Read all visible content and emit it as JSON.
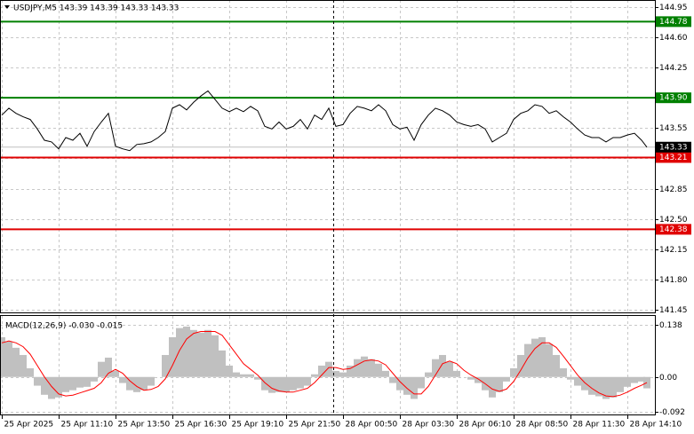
{
  "chart_data": [
    {
      "type": "line",
      "title": "USDJPY,M5  143.39 143.39 143.33 143.33",
      "x": [
        0,
        4,
        8,
        12,
        16,
        20,
        24,
        28,
        32,
        36,
        40,
        44,
        48,
        52,
        56,
        60,
        64,
        68,
        72,
        76,
        80,
        84,
        88,
        92,
        96,
        100,
        104,
        108,
        112,
        116,
        120,
        124,
        128,
        132,
        136,
        140,
        144,
        148,
        152,
        156,
        160,
        164,
        168,
        172,
        176,
        180,
        184,
        188,
        192,
        196,
        200,
        204,
        208,
        212,
        216,
        220,
        224,
        228,
        232,
        236,
        240,
        244,
        248,
        252,
        256,
        260,
        264,
        268,
        272,
        276,
        280,
        284,
        288,
        292,
        296,
        300,
        304,
        308,
        312,
        316,
        320,
        324,
        328,
        332,
        336,
        340,
        344,
        348,
        352,
        356,
        360,
        363
      ],
      "xlim": [
        0,
        367
      ],
      "xticks": [
        {
          "value": 0,
          "label": "25 Apr 2025"
        },
        {
          "value": 32,
          "label": "25 Apr 11:10"
        },
        {
          "value": 64,
          "label": "25 Apr 13:50"
        },
        {
          "value": 96,
          "label": "25 Apr 16:30"
        },
        {
          "value": 128,
          "label": "25 Apr 19:10"
        },
        {
          "value": 160,
          "label": "25 Apr 21:50"
        },
        {
          "value": 192,
          "label": "28 Apr 00:50"
        },
        {
          "value": 224,
          "label": "28 Apr 03:30"
        },
        {
          "value": 256,
          "label": "28 Apr 06:10"
        },
        {
          "value": 288,
          "label": "28 Apr 08:50"
        },
        {
          "value": 320,
          "label": "28 Apr 11:30"
        },
        {
          "value": 352,
          "label": "28 Apr 14:10"
        }
      ],
      "ylim": [
        141.42,
        145.03
      ],
      "yticks": [
        144.95,
        {
          "value": 144.6,
          "label": "144.60"
        },
        144.25,
        {
          "value": 143.9,
          "label": "143.90"
        },
        143.55,
        {
          "value": 143.2,
          "label": "143.20"
        },
        142.85,
        {
          "value": 142.5,
          "label": "142.50"
        },
        142.15,
        {
          "value": 141.8,
          "label": "141.80"
        },
        141.45
      ],
      "grid": true,
      "series": [
        {
          "color": "#000000",
          "values": [
            143.7,
            143.78,
            143.72,
            143.68,
            143.65,
            143.54,
            143.41,
            143.39,
            143.31,
            143.44,
            143.41,
            143.49,
            143.34,
            143.51,
            143.62,
            143.72,
            143.34,
            143.31,
            143.29,
            143.36,
            143.37,
            143.39,
            143.44,
            143.51,
            143.78,
            143.82,
            143.76,
            143.85,
            143.92,
            143.98,
            143.88,
            143.78,
            143.74,
            143.78,
            143.74,
            143.8,
            143.75,
            143.57,
            143.54,
            143.62,
            143.54,
            143.57,
            143.65,
            143.54,
            143.7,
            143.65,
            143.78,
            143.57,
            143.59,
            143.72,
            143.8,
            143.78,
            143.75,
            143.82,
            143.75,
            143.59,
            143.54,
            143.56,
            143.41,
            143.59,
            143.7,
            143.78,
            143.75,
            143.7,
            143.62,
            143.59,
            143.57,
            143.59,
            143.54,
            143.39,
            143.44,
            143.49,
            143.65,
            143.72,
            143.75,
            143.82,
            143.8,
            143.72,
            143.75,
            143.68,
            143.62,
            143.54,
            143.47,
            143.44,
            143.44,
            143.39,
            143.44,
            143.44,
            143.47,
            143.49,
            143.41,
            143.33
          ]
        }
      ],
      "levels": [
        {
          "value": 144.78,
          "color": "#008000"
        },
        {
          "value": 143.9,
          "label": "143.90",
          "color": "#008000"
        },
        {
          "value": 143.21,
          "color": "#e00000"
        },
        {
          "value": 142.38,
          "color": "#e00000"
        }
      ],
      "last_price": 143.33
    },
    {
      "type": "macd",
      "title": "MACD(12,26,9) -0.030 -0.015",
      "ylim": [
        -0.099,
        0.161
      ],
      "yticks": [
        0.138,
        {
          "value": 0,
          "label": "0.00"
        },
        -0.092
      ],
      "grid": true,
      "histogram": {
        "color": "#c0c0c0",
        "values": [
          0.105,
          0.094,
          0.077,
          0.058,
          0.023,
          -0.023,
          -0.047,
          -0.058,
          -0.054,
          -0.04,
          -0.035,
          -0.028,
          -0.026,
          -0.012,
          0.04,
          0.051,
          0.016,
          -0.016,
          -0.035,
          -0.04,
          -0.035,
          -0.023,
          0,
          0.058,
          0.105,
          0.129,
          0.133,
          0.124,
          0.117,
          0.124,
          0.11,
          0.07,
          0.03,
          0.012,
          0.007,
          0.007,
          -0.007,
          -0.035,
          -0.042,
          -0.04,
          -0.04,
          -0.035,
          -0.03,
          -0.023,
          0.007,
          0.03,
          0.04,
          0.016,
          0.012,
          0.03,
          0.047,
          0.054,
          0.047,
          0.035,
          0.016,
          -0.016,
          -0.035,
          -0.047,
          -0.058,
          -0.03,
          0.012,
          0.047,
          0.058,
          0.04,
          0.016,
          0,
          -0.007,
          -0.016,
          -0.035,
          -0.054,
          -0.04,
          -0.012,
          0.023,
          0.058,
          0.087,
          0.101,
          0.105,
          0.087,
          0.058,
          0.023,
          -0.007,
          -0.023,
          -0.035,
          -0.047,
          -0.051,
          -0.058,
          -0.054,
          -0.04,
          -0.026,
          -0.016,
          -0.012,
          -0.03
        ]
      },
      "signal": {
        "color": "#ff0000",
        "values": [
          0.09,
          0.095,
          0.09,
          0.08,
          0.06,
          0.03,
          0,
          -0.025,
          -0.045,
          -0.05,
          -0.048,
          -0.042,
          -0.036,
          -0.03,
          -0.015,
          0.01,
          0.02,
          0.01,
          -0.01,
          -0.025,
          -0.035,
          -0.033,
          -0.025,
          -0.005,
          0.03,
          0.07,
          0.1,
          0.115,
          0.12,
          0.12,
          0.12,
          0.11,
          0.085,
          0.06,
          0.035,
          0.02,
          0.005,
          -0.015,
          -0.03,
          -0.037,
          -0.04,
          -0.04,
          -0.035,
          -0.03,
          -0.015,
          0.005,
          0.025,
          0.025,
          0.02,
          0.022,
          0.032,
          0.042,
          0.045,
          0.042,
          0.032,
          0.01,
          -0.012,
          -0.03,
          -0.045,
          -0.045,
          -0.025,
          0.005,
          0.035,
          0.042,
          0.035,
          0.018,
          0.005,
          -0.005,
          -0.018,
          -0.032,
          -0.038,
          -0.032,
          -0.012,
          0.018,
          0.05,
          0.075,
          0.09,
          0.09,
          0.078,
          0.055,
          0.03,
          0.005,
          -0.015,
          -0.03,
          -0.042,
          -0.05,
          -0.052,
          -0.048,
          -0.04,
          -0.03,
          -0.022,
          -0.015
        ]
      }
    }
  ]
}
